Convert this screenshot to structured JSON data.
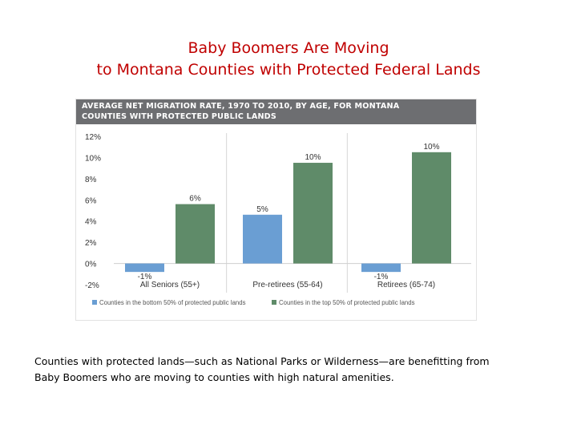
{
  "slide": {
    "title_line1": "Baby Boomers Are Moving",
    "title_line2": "to Montana Counties with Protected Federal Lands",
    "caption_line1": "Counties with protected lands—such as National Parks or Wilderness—are benefitting from",
    "caption_line2": "Baby Boomers who are moving to counties with high natural amenities."
  },
  "colors": {
    "header_bg": "#6d6e71",
    "bottom_series": "#6a9ed3",
    "top_series": "#5f8b69",
    "title": "#c00000"
  },
  "chart_data": {
    "type": "bar",
    "title_line1": "AVERAGE NET MIGRATION RATE, 1970 TO 2010, BY AGE, FOR MONTANA",
    "title_line2": "COUNTIES WITH PROTECTED PUBLIC LANDS",
    "categories": [
      "All Seniors (55+)",
      "Pre-retirees (55-64)",
      "Retirees (65-74)"
    ],
    "series": [
      {
        "name": "Counties in the bottom 50% of protected public lands",
        "values": [
          -0.8,
          4.6,
          -0.8
        ],
        "labels": [
          "-1%",
          "5%",
          "-1%"
        ]
      },
      {
        "name": "Counties in the top 50% of protected public lands",
        "values": [
          5.6,
          9.5,
          10.5
        ],
        "labels": [
          "6%",
          "10%",
          "10%"
        ]
      }
    ],
    "yticks": [
      "12%",
      "10%",
      "8%",
      "6%",
      "4%",
      "2%",
      "0%",
      "-2%"
    ],
    "ylim": [
      -2,
      12
    ],
    "xlabel": "",
    "ylabel": "",
    "legend_position": "bottom"
  }
}
